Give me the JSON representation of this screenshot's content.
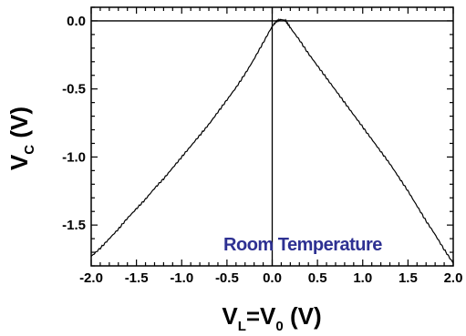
{
  "chart_data": {
    "type": "line",
    "xlabel": {
      "main": "V",
      "sub": "L",
      "mid": "=V",
      "sub2": "0",
      "unit": " (V)"
    },
    "ylabel": {
      "main": "V",
      "sub": "C",
      "unit": " (V)"
    },
    "xlim": [
      -2.0,
      2.0
    ],
    "ylim": [
      -1.8,
      0.1
    ],
    "xticks": [
      -2.0,
      -1.5,
      -1.0,
      -0.5,
      0.0,
      0.5,
      1.0,
      1.5,
      2.0
    ],
    "xtick_labels": [
      "-2.0",
      "-1.5",
      "-1.0",
      "-0.5",
      "0.0",
      "0.5",
      "1.0",
      "1.5",
      "2.0"
    ],
    "yticks": [
      0.0,
      -0.5,
      -1.0,
      -1.5
    ],
    "ytick_labels": [
      "0.0",
      "-0.5",
      "-1.0",
      "-1.5"
    ],
    "annotation": "Room Temperature",
    "annotation_color": "#2e3192",
    "line_color": "#000000",
    "series": [
      {
        "x": [
          -2.0,
          -1.9,
          -1.8,
          -1.7,
          -1.6,
          -1.5,
          -1.4,
          -1.3,
          -1.2,
          -1.1,
          -1.0,
          -0.9,
          -0.8,
          -0.7,
          -0.6,
          -0.5,
          -0.4,
          -0.3,
          -0.2,
          -0.1,
          0.0,
          0.05,
          0.1,
          0.15,
          0.2,
          0.3,
          0.4,
          0.5,
          0.6,
          0.7,
          0.8,
          0.9,
          1.0,
          1.1,
          1.2,
          1.3,
          1.4,
          1.5,
          1.6,
          1.7,
          1.8,
          1.9,
          2.0
        ],
        "y": [
          -1.73,
          -1.67,
          -1.6,
          -1.53,
          -1.45,
          -1.38,
          -1.31,
          -1.23,
          -1.16,
          -1.08,
          -1.0,
          -0.92,
          -0.84,
          -0.76,
          -0.67,
          -0.58,
          -0.49,
          -0.39,
          -0.28,
          -0.16,
          -0.04,
          0.0,
          0.01,
          0.0,
          -0.05,
          -0.14,
          -0.24,
          -0.33,
          -0.42,
          -0.51,
          -0.6,
          -0.69,
          -0.78,
          -0.87,
          -0.96,
          -1.05,
          -1.15,
          -1.25,
          -1.36,
          -1.47,
          -1.57,
          -1.68,
          -1.78
        ]
      }
    ]
  }
}
